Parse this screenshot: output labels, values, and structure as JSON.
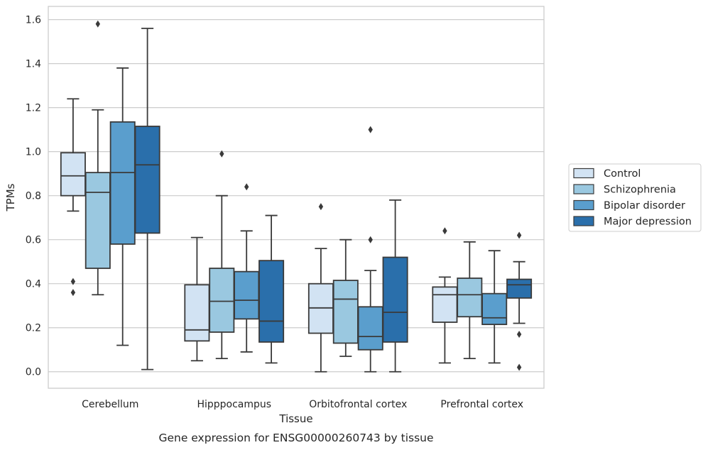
{
  "caption": "Gene expression for ENSG00000260743 by tissue",
  "chart_data": {
    "type": "boxplot",
    "xlabel": "Tissue",
    "ylabel": "TPMs",
    "ylim": [
      -0.075,
      1.66
    ],
    "yticks": [
      "0.0",
      "0.2",
      "0.4",
      "0.6",
      "0.8",
      "1.0",
      "1.2",
      "1.4",
      "1.6"
    ],
    "grid": true,
    "legend_position": "right",
    "categories": [
      "Cerebellum",
      "Hipppocampus",
      "Orbitofrontal cortex",
      "Prefrontal cortex"
    ],
    "series": [
      {
        "name": "Control",
        "color": "#d2e3f3",
        "boxes": [
          {
            "q1": 0.8,
            "median": 0.89,
            "q3": 0.995,
            "whislo": 0.73,
            "whishi": 1.24,
            "fliers": [
              0.41,
              0.36
            ]
          },
          {
            "q1": 0.14,
            "median": 0.19,
            "q3": 0.395,
            "whislo": 0.05,
            "whishi": 0.61,
            "fliers": []
          },
          {
            "q1": 0.175,
            "median": 0.29,
            "q3": 0.4,
            "whislo": 0.0,
            "whishi": 0.56,
            "fliers": [
              0.75
            ]
          },
          {
            "q1": 0.225,
            "median": 0.35,
            "q3": 0.385,
            "whislo": 0.04,
            "whishi": 0.43,
            "fliers": [
              0.64
            ]
          }
        ]
      },
      {
        "name": "Schizophrenia",
        "color": "#9ac8e0",
        "boxes": [
          {
            "q1": 0.47,
            "median": 0.815,
            "q3": 0.905,
            "whislo": 0.35,
            "whishi": 1.19,
            "fliers": [
              1.58
            ]
          },
          {
            "q1": 0.18,
            "median": 0.32,
            "q3": 0.47,
            "whislo": 0.06,
            "whishi": 0.8,
            "fliers": [
              0.99
            ]
          },
          {
            "q1": 0.13,
            "median": 0.33,
            "q3": 0.415,
            "whislo": 0.07,
            "whishi": 0.6,
            "fliers": []
          },
          {
            "q1": 0.25,
            "median": 0.35,
            "q3": 0.425,
            "whislo": 0.06,
            "whishi": 0.59,
            "fliers": []
          }
        ]
      },
      {
        "name": "Bipolar disorder",
        "color": "#5a9ecd",
        "boxes": [
          {
            "q1": 0.58,
            "median": 0.905,
            "q3": 1.135,
            "whislo": 0.12,
            "whishi": 1.38,
            "fliers": []
          },
          {
            "q1": 0.24,
            "median": 0.325,
            "q3": 0.455,
            "whislo": 0.09,
            "whishi": 0.64,
            "fliers": [
              0.84
            ]
          },
          {
            "q1": 0.1,
            "median": 0.16,
            "q3": 0.295,
            "whislo": 0.0,
            "whishi": 0.46,
            "fliers": [
              0.6,
              1.1
            ]
          },
          {
            "q1": 0.215,
            "median": 0.245,
            "q3": 0.355,
            "whislo": 0.04,
            "whishi": 0.55,
            "fliers": []
          }
        ]
      },
      {
        "name": "Major depression",
        "color": "#2a6fab",
        "boxes": [
          {
            "q1": 0.63,
            "median": 0.94,
            "q3": 1.115,
            "whislo": 0.01,
            "whishi": 1.56,
            "fliers": []
          },
          {
            "q1": 0.135,
            "median": 0.23,
            "q3": 0.505,
            "whislo": 0.04,
            "whishi": 0.71,
            "fliers": []
          },
          {
            "q1": 0.135,
            "median": 0.27,
            "q3": 0.52,
            "whislo": 0.0,
            "whishi": 0.78,
            "fliers": []
          },
          {
            "q1": 0.335,
            "median": 0.395,
            "q3": 0.42,
            "whislo": 0.22,
            "whishi": 0.5,
            "fliers": [
              0.62,
              0.17,
              0.02
            ]
          }
        ]
      }
    ]
  }
}
